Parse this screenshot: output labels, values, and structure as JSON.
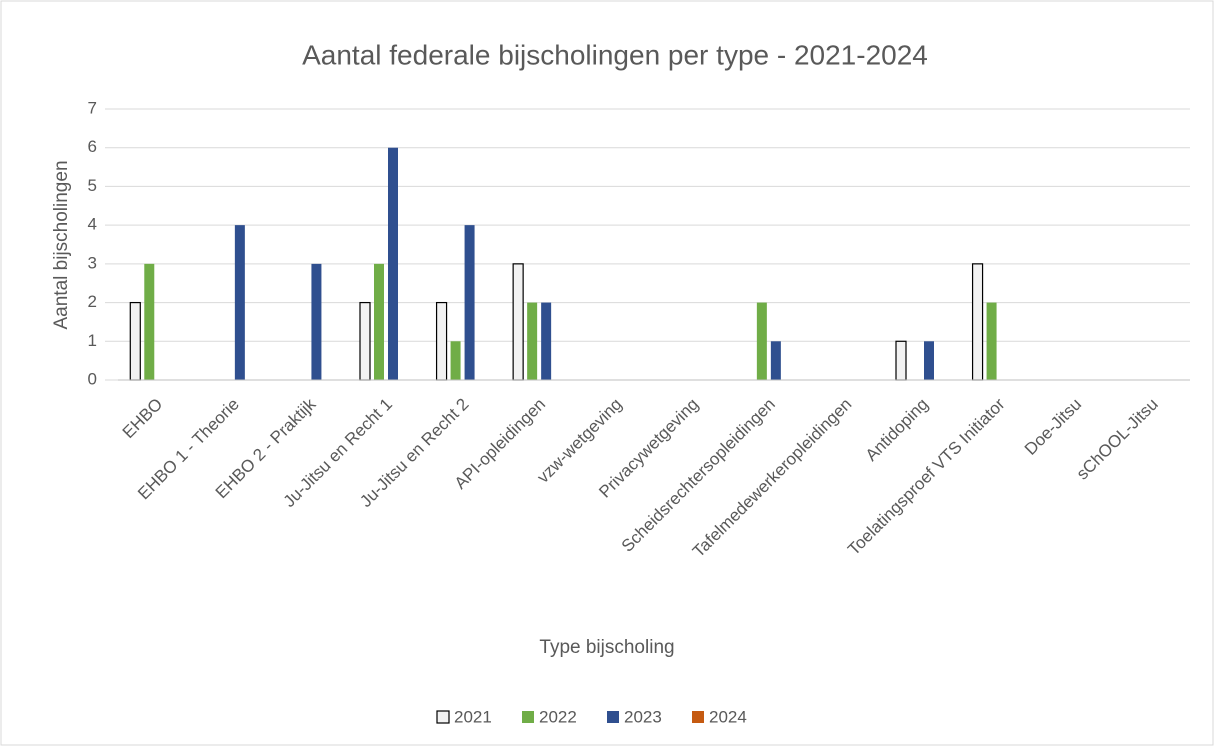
{
  "chart_data": {
    "type": "bar",
    "title": "Aantal federale bijscholingen per type - 2021-2024",
    "xlabel": "Type bijscholing",
    "ylabel": "Aantal bijscholingen",
    "categories": [
      "EHBO",
      "EHBO 1 - Theorie",
      "EHBO 2 - Praktijk",
      "Ju-Jitsu en Recht 1",
      "Ju-Jitsu en Recht 2",
      "API-opleidingen",
      "vzw-wetgeving",
      "Privacywetgeving",
      "Scheidsrechtersopleidingen",
      "Tafelmedewerkeropleidingen",
      "Antidoping",
      "Toelatingsproef VTS Initiator",
      "Doe-Jitsu",
      "sChOOL-Jitsu"
    ],
    "series": [
      {
        "name": "2021",
        "color": "#f2f2f2",
        "edgecolor": "#000000",
        "values": [
          2,
          0,
          0,
          2,
          2,
          3,
          0,
          0,
          0,
          0,
          1,
          3,
          0,
          0
        ]
      },
      {
        "name": "2022",
        "color": "#70ad47",
        "values": [
          3,
          0,
          0,
          3,
          1,
          2,
          0,
          0,
          2,
          0,
          0,
          2,
          0,
          0
        ]
      },
      {
        "name": "2023",
        "color": "#2f4f8f",
        "values": [
          0,
          4,
          3,
          6,
          4,
          2,
          0,
          0,
          1,
          0,
          1,
          0,
          0,
          0
        ]
      },
      {
        "name": "2024",
        "color": "#c55a11",
        "values": [
          0,
          0,
          0,
          0,
          0,
          0,
          0,
          0,
          0,
          0,
          0,
          0,
          0,
          0
        ]
      }
    ],
    "ylim": [
      0,
      7
    ],
    "yticks": [
      0,
      1,
      2,
      3,
      4,
      5,
      6,
      7
    ],
    "grid": true,
    "legend": "bottom"
  }
}
